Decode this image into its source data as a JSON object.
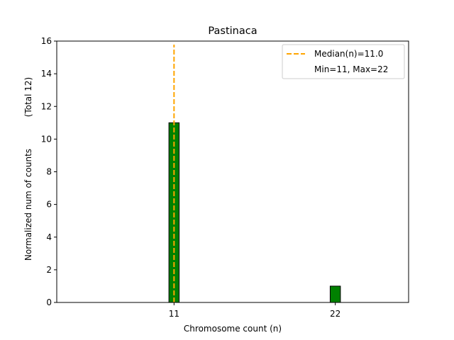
{
  "chart_data": {
    "type": "bar",
    "title": "Pastinaca",
    "xlabel": "Chromosome count (n)",
    "ylabel": "Normalized num of counts",
    "ylabel_note": "(Total 12)",
    "x": [
      11,
      22
    ],
    "values": [
      11,
      1
    ],
    "xlim": [
      3,
      27
    ],
    "ylim": [
      0,
      16
    ],
    "xticks": [
      11,
      22
    ],
    "yticks": [
      0,
      2,
      4,
      6,
      8,
      10,
      12,
      14,
      16
    ],
    "grid": false,
    "bar_color": "#008000",
    "bar_edge_color": "#000000",
    "median": 11.0,
    "median_color": "#ffa500",
    "legend_position": "top-right",
    "legend": {
      "median_label": "Median(n)=11.0",
      "range_label": "Min=11, Max=22"
    }
  }
}
